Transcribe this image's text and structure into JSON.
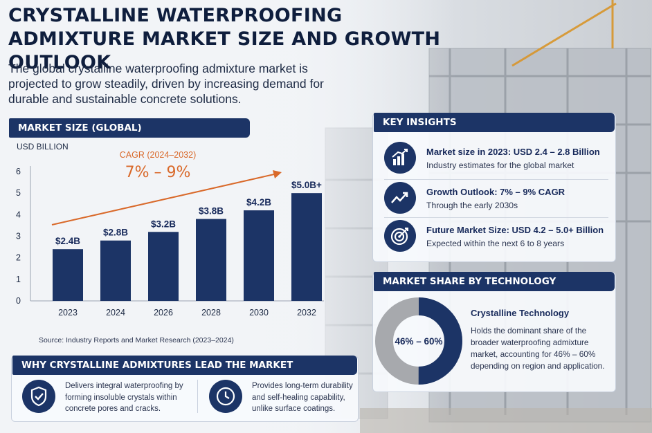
{
  "title": "CRYSTALLINE WATERPROOFING ADMIXTURE MARKET SIZE AND GROWTH OUTLOOK",
  "subtitle": "The global crystalline waterproofing admixture market is projected to grow steadily, driven by increasing demand for durable and sustainable concrete solutions.",
  "market_size": {
    "header": "MARKET SIZE (GLOBAL)",
    "source": "Source: Industry Reports and Market Research (2023–2024)"
  },
  "chart_data": {
    "type": "bar",
    "title": "",
    "ylabel": "USD BILLION",
    "xlabel": "",
    "categories": [
      "2023",
      "2024",
      "2026",
      "2028",
      "2030",
      "2032"
    ],
    "values": [
      2.4,
      2.8,
      3.2,
      3.8,
      4.2,
      5.0
    ],
    "data_labels": [
      "$2.4B",
      "$2.8B",
      "$3.2B",
      "$3.8B",
      "$4.2B",
      "$5.0B+"
    ],
    "ylim": [
      0,
      6
    ],
    "yticks": [
      0,
      1,
      2,
      3,
      4,
      5,
      6
    ],
    "grid": false,
    "bar_color": "#1c3466",
    "annotation": {
      "label": "CAGR (2024–2032)",
      "value": "7% – 9%",
      "color": "#d9692a"
    }
  },
  "key_insights": {
    "header": "KEY INSIGHTS",
    "items": [
      {
        "icon": "bar-chart-icon",
        "title": "Market size in 2023: USD 2.4 – 2.8 Billion",
        "subtitle": "Industry estimates for the global market"
      },
      {
        "icon": "trend-up-icon",
        "title": "Growth Outlook: 7% – 9% CAGR",
        "subtitle": "Through the early 2030s"
      },
      {
        "icon": "target-icon",
        "title": "Future Market Size: USD 4.2 – 5.0+ Billion",
        "subtitle": "Expected within the next 6 to 8 years"
      }
    ]
  },
  "market_share": {
    "header": "MARKET SHARE BY TECHNOLOGY",
    "donut_label": "46% – 60%",
    "share_fraction": 0.5,
    "title": "Crystalline Technology",
    "description": "Holds the dominant share of the broader waterproofing admixture market, accounting for 46% – 60% depending on region and application.",
    "colors": {
      "share": "#1c3466",
      "rest": "#a7a9ad"
    }
  },
  "why": {
    "header": "WHY CRYSTALLINE ADMIXTURES LEAD THE MARKET",
    "items": [
      {
        "icon": "shield-check-icon",
        "text": "Delivers integral waterproofing by forming insoluble crystals within concrete pores and cracks."
      },
      {
        "icon": "clock-icon",
        "text": "Provides long-term durability and self-healing capability, unlike surface coatings."
      }
    ]
  }
}
